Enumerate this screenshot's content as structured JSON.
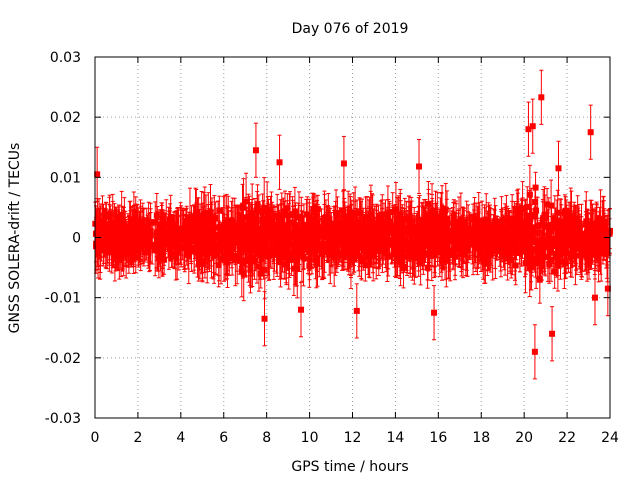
{
  "chart_data": {
    "type": "scatter",
    "title": "Day 076 of 2019",
    "xlabel": "GPS time / hours",
    "ylabel": "GNSS SOLERA-drift / TECUs",
    "xlim": [
      0,
      24
    ],
    "ylim": [
      -0.03,
      0.03
    ],
    "x_ticks": [
      "0",
      "2",
      "4",
      "6",
      "8",
      "10",
      "12",
      "14",
      "16",
      "18",
      "20",
      "22",
      "24"
    ],
    "y_ticks": [
      "-0.03",
      "-0.02",
      "-0.01",
      "0",
      "0.01",
      "0.02",
      "0.03"
    ],
    "grid": true,
    "marker": "filled-square",
    "error_bars": true,
    "color": "#ff0000",
    "envelope": {
      "x": [
        0,
        1,
        2,
        3,
        4,
        5,
        6,
        7,
        8,
        9,
        10,
        11,
        12,
        13,
        14,
        15,
        16,
        17,
        18,
        19,
        20,
        20.5,
        21,
        22,
        23,
        24
      ],
      "half_width": [
        0.0055,
        0.0055,
        0.0055,
        0.0055,
        0.006,
        0.007,
        0.0085,
        0.0095,
        0.009,
        0.0085,
        0.008,
        0.0075,
        0.007,
        0.0065,
        0.0075,
        0.0085,
        0.007,
        0.006,
        0.0055,
        0.006,
        0.0085,
        0.012,
        0.0095,
        0.0075,
        0.0065,
        0.0055
      ]
    },
    "highlight_points": [
      {
        "x": 0.1,
        "y": 0.0105
      },
      {
        "x": 7.5,
        "y": 0.0145
      },
      {
        "x": 7.9,
        "y": -0.0135
      },
      {
        "x": 8.6,
        "y": 0.0125
      },
      {
        "x": 9.6,
        "y": -0.012
      },
      {
        "x": 11.6,
        "y": 0.0123
      },
      {
        "x": 12.2,
        "y": -0.0122
      },
      {
        "x": 15.1,
        "y": 0.0118
      },
      {
        "x": 15.8,
        "y": -0.0125
      },
      {
        "x": 20.2,
        "y": 0.018
      },
      {
        "x": 20.4,
        "y": 0.0185
      },
      {
        "x": 20.5,
        "y": -0.019
      },
      {
        "x": 20.8,
        "y": 0.0233
      },
      {
        "x": 21.3,
        "y": -0.016
      },
      {
        "x": 21.6,
        "y": 0.0115
      },
      {
        "x": 23.1,
        "y": 0.0175
      },
      {
        "x": 23.3,
        "y": -0.01
      },
      {
        "x": 23.9,
        "y": -0.0085
      }
    ]
  }
}
